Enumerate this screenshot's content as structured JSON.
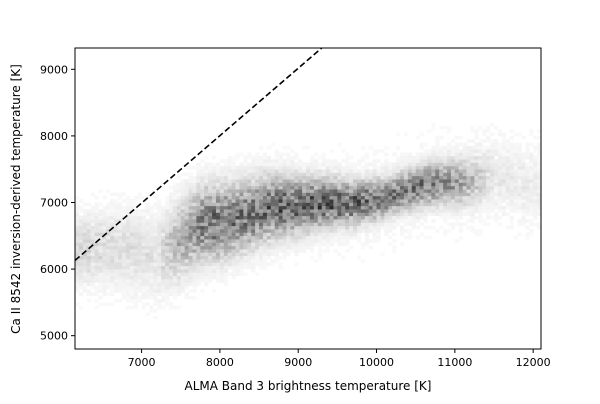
{
  "chart_data": {
    "type": "heatmap",
    "title": "",
    "xlabel": "ALMA Band 3 brightness temperature [K]",
    "ylabel": "Ca II 8542 inversion-derived temperature [K]",
    "xlim": [
      6150,
      12100
    ],
    "ylim": [
      4800,
      9320
    ],
    "xticks": [
      7000,
      8000,
      9000,
      10000,
      11000,
      12000
    ],
    "yticks": [
      5000,
      6000,
      7000,
      8000,
      9000
    ],
    "grid": false,
    "colormap": "Greys",
    "reference_line": {
      "style": "dashed",
      "color": "#000000",
      "points": [
        [
          6150,
          6130
        ],
        [
          9300,
          9320
        ]
      ]
    },
    "density_ridge": [
      {
        "x": 6300,
        "y": 6300,
        "density": 0.15
      },
      {
        "x": 6700,
        "y": 6350,
        "density": 0.12
      },
      {
        "x": 7200,
        "y": 6200,
        "density": 0.1
      },
      {
        "x": 7800,
        "y": 6700,
        "density": 0.55
      },
      {
        "x": 8000,
        "y": 6700,
        "density": 0.6
      },
      {
        "x": 8300,
        "y": 6800,
        "density": 0.55
      },
      {
        "x": 8700,
        "y": 6950,
        "density": 0.65
      },
      {
        "x": 9000,
        "y": 6950,
        "density": 0.65
      },
      {
        "x": 9400,
        "y": 7000,
        "density": 0.7
      },
      {
        "x": 9700,
        "y": 7000,
        "density": 0.65
      },
      {
        "x": 10000,
        "y": 7050,
        "density": 0.6
      },
      {
        "x": 10300,
        "y": 7150,
        "density": 0.55
      },
      {
        "x": 10600,
        "y": 7250,
        "density": 0.6
      },
      {
        "x": 10800,
        "y": 7300,
        "density": 0.55
      },
      {
        "x": 11100,
        "y": 7300,
        "density": 0.35
      },
      {
        "x": 11500,
        "y": 7400,
        "density": 0.08
      },
      {
        "x": 12000,
        "y": 7250,
        "density": 0.05
      }
    ]
  }
}
